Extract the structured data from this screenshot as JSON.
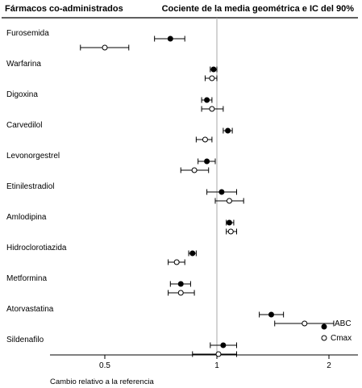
{
  "chart_data": {
    "type": "forest",
    "title_left": "Fármacos co-administrados",
    "title_right": "Cociente de la media geométrica e IC del 90%",
    "xlabel": "Cambio relativo a la referencia",
    "x_scale": "log",
    "xlim": [
      0.3,
      2.6
    ],
    "reference_line": 1,
    "xticks": [
      0.5,
      1,
      2
    ],
    "xtick_labels": [
      "0.5",
      "1",
      "2"
    ],
    "legend_position": "bottom-right",
    "series": [
      {
        "name": "ABC",
        "marker": "filled-circle"
      },
      {
        "name": "Cmax",
        "marker": "open-circle"
      }
    ],
    "rows": [
      {
        "label": "Furosemida",
        "abc": {
          "est": 0.75,
          "lo": 0.68,
          "hi": 0.82
        },
        "cmax": {
          "est": 0.5,
          "lo": 0.43,
          "hi": 0.58
        }
      },
      {
        "label": "Warfarina",
        "abc": {
          "est": 0.98,
          "lo": 0.96,
          "hi": 1.0
        },
        "cmax": {
          "est": 0.97,
          "lo": 0.93,
          "hi": 1.0
        }
      },
      {
        "label": "Digoxina",
        "abc": {
          "est": 0.94,
          "lo": 0.91,
          "hi": 0.97
        },
        "cmax": {
          "est": 0.97,
          "lo": 0.91,
          "hi": 1.04
        }
      },
      {
        "label": "Carvedilol",
        "abc": {
          "est": 1.07,
          "lo": 1.04,
          "hi": 1.1
        },
        "cmax": {
          "est": 0.93,
          "lo": 0.88,
          "hi": 0.97
        }
      },
      {
        "label": "Levonorgestrel",
        "abc": {
          "est": 0.94,
          "lo": 0.89,
          "hi": 0.99
        },
        "cmax": {
          "est": 0.87,
          "lo": 0.8,
          "hi": 0.95
        }
      },
      {
        "label": "Etinilestradiol",
        "abc": {
          "est": 1.03,
          "lo": 0.94,
          "hi": 1.13
        },
        "cmax": {
          "est": 1.08,
          "lo": 0.99,
          "hi": 1.18
        }
      },
      {
        "label": "Amlodipina",
        "abc": {
          "est": 1.08,
          "lo": 1.06,
          "hi": 1.11
        },
        "cmax": {
          "est": 1.09,
          "lo": 1.06,
          "hi": 1.13
        }
      },
      {
        "label": "Hidroclorotiazida",
        "abc": {
          "est": 0.86,
          "lo": 0.84,
          "hi": 0.88
        },
        "cmax": {
          "est": 0.78,
          "lo": 0.74,
          "hi": 0.82
        }
      },
      {
        "label": "Metformina",
        "abc": {
          "est": 0.8,
          "lo": 0.75,
          "hi": 0.85
        },
        "cmax": {
          "est": 0.8,
          "lo": 0.74,
          "hi": 0.87
        }
      },
      {
        "label": "Atorvastatina",
        "abc": {
          "est": 1.4,
          "lo": 1.3,
          "hi": 1.51
        },
        "cmax": {
          "est": 1.72,
          "lo": 1.43,
          "hi": 2.06
        }
      },
      {
        "label": "Sildenafilo",
        "abc": {
          "est": 1.04,
          "lo": 0.96,
          "hi": 1.13
        },
        "cmax": {
          "est": 1.01,
          "lo": 0.86,
          "hi": 1.13
        }
      }
    ]
  }
}
